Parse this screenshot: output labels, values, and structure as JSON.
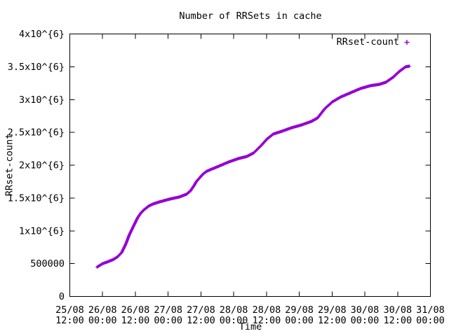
{
  "window": {
    "background": "#ffffff"
  },
  "title": "Number of RRSets in cache",
  "legend": {
    "label": "RRset-count",
    "marker": "+",
    "color": "#9400d3",
    "position": "top-right-inside"
  },
  "axes": {
    "xlabel": "Time",
    "ylabel": "RRset-count"
  },
  "chart_data": {
    "type": "scatter",
    "marker": "plus",
    "title": "Number of RRSets in cache",
    "xlabel": "Time",
    "ylabel": "RRset-count",
    "series_color": "#9400d3",
    "text_color": "#000000",
    "border_color": "#000000",
    "grid": false,
    "legend_position": "top-right-inside",
    "x_unit": "hours since 25/08 12:00",
    "x_range_hours": [
      0,
      132
    ],
    "x_tick_interval_hours": 12,
    "x_tick_labels": [
      "25/08 12:00",
      "26/08 00:00",
      "26/08 12:00",
      "27/08 00:00",
      "27/08 12:00",
      "28/08 00:00",
      "28/08 12:00",
      "29/08 00:00",
      "29/08 12:00",
      "30/08 00:00",
      "30/08 12:00",
      "31/08 00:00"
    ],
    "ylim": [
      0,
      4000000
    ],
    "y_tick_values": [
      0,
      500000,
      1000000,
      1500000,
      2000000,
      2500000,
      3000000,
      3500000,
      4000000
    ],
    "y_tick_labels": [
      "0",
      "500000",
      "1x10^{6}",
      "1.5x10^{6}",
      "2x10^{6}",
      "2.5x10^{6}",
      "3x10^{6}",
      "3.5x10^{6}",
      "4x10^{6}"
    ],
    "series": [
      {
        "name": "RRset-count",
        "points": [
          [
            10.0,
            448000
          ],
          [
            12.0,
            500000
          ],
          [
            14.0,
            530000
          ],
          [
            16.0,
            565000
          ],
          [
            17.5,
            605000
          ],
          [
            19.0,
            670000
          ],
          [
            20.5,
            800000
          ],
          [
            21.8,
            940000
          ],
          [
            22.9,
            1035000
          ],
          [
            24.0,
            1130000
          ],
          [
            24.9,
            1205000
          ],
          [
            26.0,
            1270000
          ],
          [
            27.2,
            1323000
          ],
          [
            29.0,
            1380000
          ],
          [
            30.5,
            1410000
          ],
          [
            33.0,
            1443000
          ],
          [
            36.5,
            1483000
          ],
          [
            40.0,
            1515000
          ],
          [
            42.7,
            1557000
          ],
          [
            44.2,
            1611000
          ],
          [
            45.5,
            1690000
          ],
          [
            46.3,
            1749000
          ],
          [
            48.0,
            1830000
          ],
          [
            48.8,
            1867000
          ],
          [
            50.0,
            1905000
          ],
          [
            51.4,
            1931000
          ],
          [
            54.5,
            1984000
          ],
          [
            58.1,
            2048000
          ],
          [
            61.7,
            2101000
          ],
          [
            64.8,
            2133000
          ],
          [
            67.3,
            2187000
          ],
          [
            69.9,
            2293000
          ],
          [
            72.2,
            2400000
          ],
          [
            74.5,
            2475000
          ],
          [
            77.6,
            2517000
          ],
          [
            81.2,
            2571000
          ],
          [
            84.8,
            2613000
          ],
          [
            88.4,
            2667000
          ],
          [
            90.7,
            2720000
          ],
          [
            93.3,
            2859000
          ],
          [
            96.1,
            2965000
          ],
          [
            99.2,
            3040000
          ],
          [
            102.8,
            3104000
          ],
          [
            106.4,
            3168000
          ],
          [
            110.0,
            3211000
          ],
          [
            113.3,
            3232000
          ],
          [
            115.7,
            3264000
          ],
          [
            118.3,
            3339000
          ],
          [
            120.8,
            3435000
          ],
          [
            122.9,
            3499000
          ],
          [
            124.3,
            3509000
          ]
        ]
      }
    ]
  }
}
